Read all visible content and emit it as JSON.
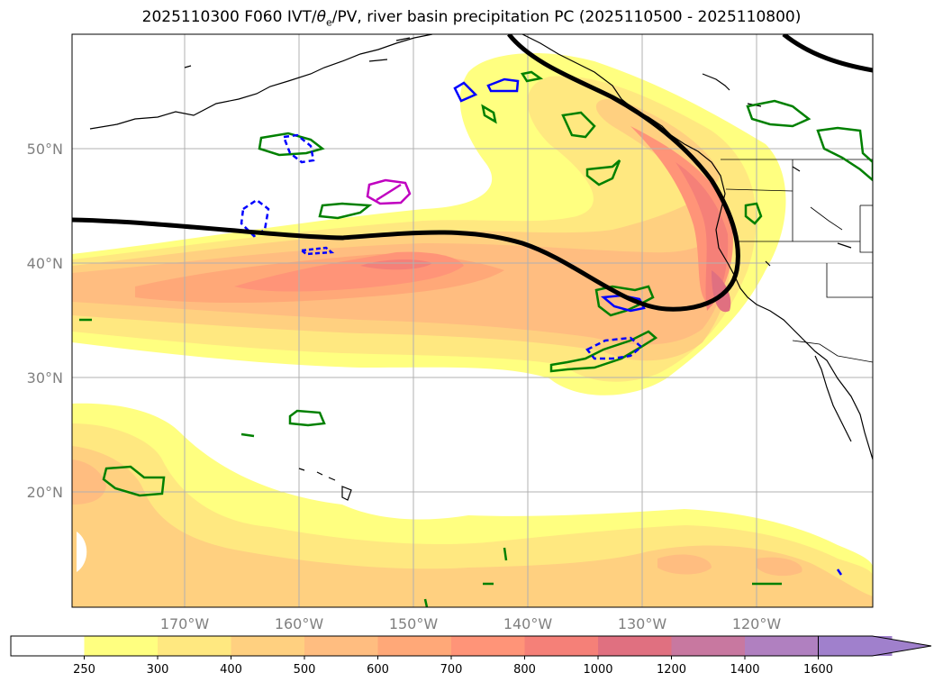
{
  "title": {
    "prefix": "2025110300 F060 IVT/",
    "theta": "θ",
    "theta_sub": "e",
    "suffix": "/PV, river basin precipitation PC (2025110500 - 2025110800)"
  },
  "map": {
    "lon_ticks": [
      "170°W",
      "160°W",
      "150°W",
      "140°W",
      "130°W",
      "120°W"
    ],
    "lat_ticks": [
      "50°N",
      "40°N",
      "30°N",
      "20°N"
    ]
  },
  "colorbar": {
    "labels": [
      "250",
      "300",
      "400",
      "500",
      "600",
      "700",
      "800",
      "1000",
      "1200",
      "1400",
      "1600"
    ],
    "colors": [
      "#ffffff",
      "#ffff80",
      "#ffe880",
      "#ffd080",
      "#ffbd80",
      "#ffa878",
      "#ff9478",
      "#f58078",
      "#e07080",
      "#c878a0",
      "#b080c0",
      "#a080cc"
    ]
  },
  "colors": {
    "pv_contour": "#000000",
    "precip_green": "#008000",
    "precip_blue": "#0000ff",
    "precip_magenta": "#c000c0",
    "grid": "#b0b0b0"
  }
}
